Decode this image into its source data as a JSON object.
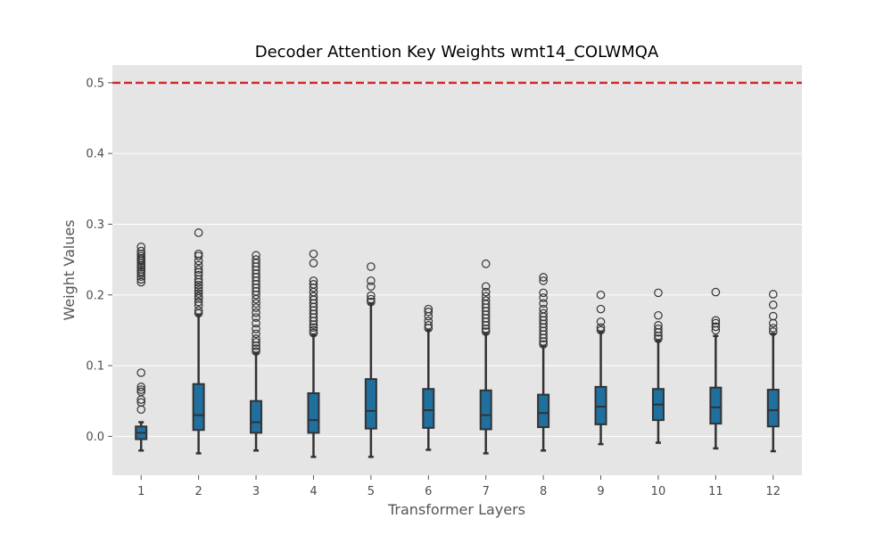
{
  "chart_data": {
    "type": "box",
    "title": "Decoder Attention Key Weights wmt14_COLWMQA",
    "xlabel": "Transformer Layers",
    "ylabel": "Weight Values",
    "ylim": [
      -0.055,
      0.525
    ],
    "yticks": [
      "0.0",
      "0.1",
      "0.2",
      "0.3",
      "0.4",
      "0.5"
    ],
    "ytick_values": [
      0.0,
      0.1,
      0.2,
      0.3,
      0.4,
      0.5
    ],
    "categories": [
      "1",
      "2",
      "3",
      "4",
      "5",
      "6",
      "7",
      "8",
      "9",
      "10",
      "11",
      "12"
    ],
    "reference_line": {
      "y": 0.5,
      "style": "dashed",
      "color": "#d62728"
    },
    "grid": true,
    "colors": {
      "background": "#e5e5e5",
      "box": "#1f6f9f",
      "edge": "#333333",
      "grid": "#ffffff"
    },
    "boxes": [
      {
        "layer": "1",
        "whisker_low": -0.02,
        "q1": -0.004,
        "median": 0.005,
        "q3": 0.014,
        "whisker_high": 0.02,
        "outliers": [
          0.038,
          0.048,
          0.052,
          0.063,
          0.066,
          0.07,
          0.09,
          0.218,
          0.222,
          0.226,
          0.23,
          0.233,
          0.236,
          0.239,
          0.242,
          0.245,
          0.248,
          0.25,
          0.252,
          0.255,
          0.258,
          0.262,
          0.268
        ]
      },
      {
        "layer": "2",
        "whisker_low": -0.024,
        "q1": 0.009,
        "median": 0.03,
        "q3": 0.074,
        "whisker_high": 0.172,
        "outliers": [
          0.174,
          0.178,
          0.185,
          0.19,
          0.195,
          0.198,
          0.202,
          0.206,
          0.21,
          0.214,
          0.218,
          0.222,
          0.228,
          0.232,
          0.236,
          0.242,
          0.248,
          0.255,
          0.258,
          0.288
        ]
      },
      {
        "layer": "3",
        "whisker_low": -0.02,
        "q1": 0.005,
        "median": 0.02,
        "q3": 0.05,
        "whisker_high": 0.118,
        "outliers": [
          0.12,
          0.124,
          0.128,
          0.133,
          0.138,
          0.145,
          0.152,
          0.16,
          0.168,
          0.175,
          0.182,
          0.188,
          0.194,
          0.2,
          0.205,
          0.21,
          0.215,
          0.22,
          0.225,
          0.23,
          0.235,
          0.24,
          0.245,
          0.25,
          0.256
        ]
      },
      {
        "layer": "4",
        "whisker_low": -0.029,
        "q1": 0.005,
        "median": 0.023,
        "q3": 0.061,
        "whisker_high": 0.143,
        "outliers": [
          0.146,
          0.15,
          0.154,
          0.158,
          0.163,
          0.168,
          0.173,
          0.178,
          0.183,
          0.188,
          0.193,
          0.198,
          0.204,
          0.21,
          0.215,
          0.22,
          0.245,
          0.258
        ]
      },
      {
        "layer": "5",
        "whisker_low": -0.029,
        "q1": 0.011,
        "median": 0.036,
        "q3": 0.081,
        "whisker_high": 0.188,
        "outliers": [
          0.19,
          0.194,
          0.199,
          0.212,
          0.22,
          0.24
        ]
      },
      {
        "layer": "6",
        "whisker_low": -0.019,
        "q1": 0.012,
        "median": 0.037,
        "q3": 0.067,
        "whisker_high": 0.15,
        "outliers": [
          0.153,
          0.157,
          0.163,
          0.17,
          0.176,
          0.18
        ]
      },
      {
        "layer": "7",
        "whisker_low": -0.024,
        "q1": 0.01,
        "median": 0.03,
        "q3": 0.065,
        "whisker_high": 0.146,
        "outliers": [
          0.148,
          0.152,
          0.157,
          0.162,
          0.167,
          0.172,
          0.177,
          0.182,
          0.187,
          0.192,
          0.198,
          0.204,
          0.212,
          0.244
        ]
      },
      {
        "layer": "8",
        "whisker_low": -0.02,
        "q1": 0.013,
        "median": 0.033,
        "q3": 0.059,
        "whisker_high": 0.128,
        "outliers": [
          0.13,
          0.134,
          0.139,
          0.144,
          0.149,
          0.154,
          0.159,
          0.164,
          0.169,
          0.174,
          0.18,
          0.188,
          0.196,
          0.203,
          0.22,
          0.225
        ]
      },
      {
        "layer": "9",
        "whisker_low": -0.011,
        "q1": 0.017,
        "median": 0.042,
        "q3": 0.07,
        "whisker_high": 0.148,
        "outliers": [
          0.15,
          0.154,
          0.162,
          0.18,
          0.2
        ]
      },
      {
        "layer": "10",
        "whisker_low": -0.009,
        "q1": 0.023,
        "median": 0.045,
        "q3": 0.067,
        "whisker_high": 0.135,
        "outliers": [
          0.138,
          0.142,
          0.147,
          0.152,
          0.157,
          0.171,
          0.203
        ]
      },
      {
        "layer": "11",
        "whisker_low": -0.017,
        "q1": 0.018,
        "median": 0.041,
        "q3": 0.069,
        "whisker_high": 0.142,
        "outliers": [
          0.15,
          0.155,
          0.16,
          0.164,
          0.204
        ]
      },
      {
        "layer": "12",
        "whisker_low": -0.021,
        "q1": 0.014,
        "median": 0.037,
        "q3": 0.066,
        "whisker_high": 0.145,
        "outliers": [
          0.148,
          0.153,
          0.16,
          0.17,
          0.186,
          0.201
        ]
      }
    ]
  }
}
